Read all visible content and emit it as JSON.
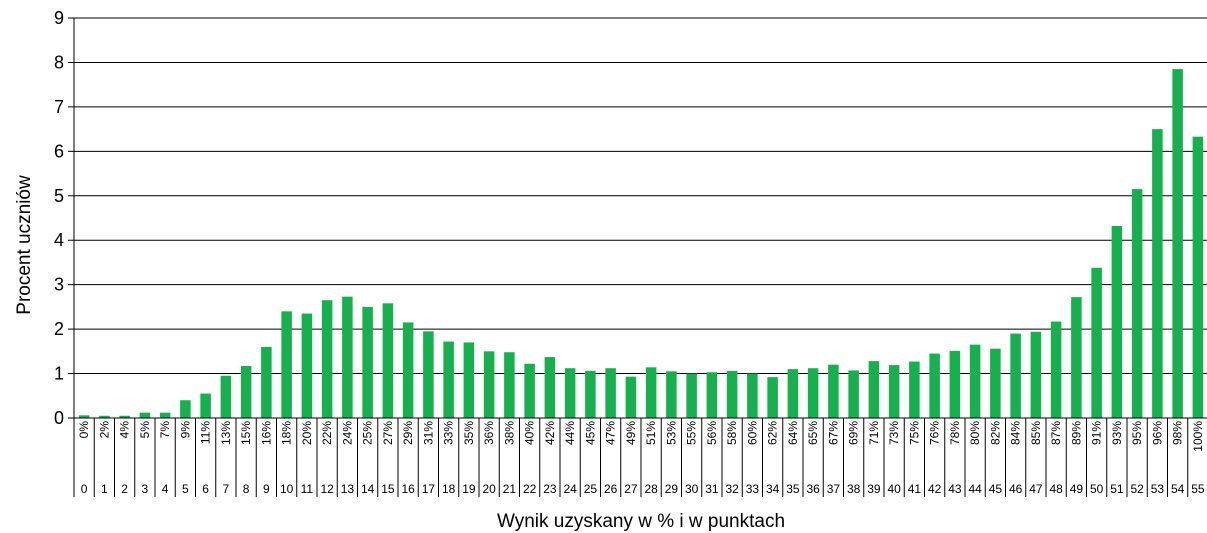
{
  "chart_data": {
    "type": "bar",
    "xlabel": "Wynik uzyskany w % i w punktach",
    "ylabel": "Procent uczniów",
    "ylim": [
      0,
      9
    ],
    "yticks": [
      "0",
      "1",
      "2",
      "3",
      "4",
      "5",
      "6",
      "7",
      "8",
      "9"
    ],
    "grid": "horizontal",
    "bar_color": "#16b04f",
    "points": [
      "0",
      "1",
      "2",
      "3",
      "4",
      "5",
      "6",
      "7",
      "8",
      "9",
      "10",
      "11",
      "12",
      "13",
      "14",
      "15",
      "16",
      "17",
      "18",
      "19",
      "20",
      "21",
      "22",
      "23",
      "24",
      "25",
      "26",
      "27",
      "28",
      "29",
      "30",
      "31",
      "32",
      "33",
      "34",
      "35",
      "36",
      "37",
      "38",
      "39",
      "40",
      "41",
      "42",
      "43",
      "44",
      "45",
      "46",
      "47",
      "48",
      "49",
      "50",
      "51",
      "52",
      "53",
      "54",
      "55"
    ],
    "percent_labels": [
      "0%",
      "2%",
      "4%",
      "5%",
      "7%",
      "9%",
      "11%",
      "13%",
      "15%",
      "16%",
      "18%",
      "20%",
      "22%",
      "24%",
      "25%",
      "27%",
      "29%",
      "31%",
      "33%",
      "35%",
      "36%",
      "38%",
      "40%",
      "42%",
      "44%",
      "45%",
      "47%",
      "49%",
      "51%",
      "53%",
      "55%",
      "56%",
      "58%",
      "60%",
      "62%",
      "64%",
      "65%",
      "67%",
      "69%",
      "71%",
      "73%",
      "75%",
      "76%",
      "78%",
      "80%",
      "82%",
      "84%",
      "85%",
      "87%",
      "89%",
      "91%",
      "93%",
      "95%",
      "96%",
      "98%",
      "100%"
    ],
    "values": [
      0.06,
      0.05,
      0.05,
      0.12,
      0.12,
      0.4,
      0.55,
      0.95,
      1.17,
      1.6,
      2.4,
      2.35,
      2.65,
      2.73,
      2.5,
      2.58,
      2.15,
      1.95,
      1.72,
      1.7,
      1.5,
      1.48,
      1.22,
      1.37,
      1.12,
      1.06,
      1.12,
      0.93,
      1.14,
      1.05,
      1.0,
      1.03,
      1.06,
      1.0,
      0.92,
      1.1,
      1.12,
      1.2,
      1.07,
      1.28,
      1.19,
      1.27,
      1.45,
      1.51,
      1.65,
      1.56,
      1.9,
      1.94,
      2.17,
      2.72,
      3.38,
      4.32,
      5.15,
      6.5,
      7.85,
      6.33
    ]
  }
}
